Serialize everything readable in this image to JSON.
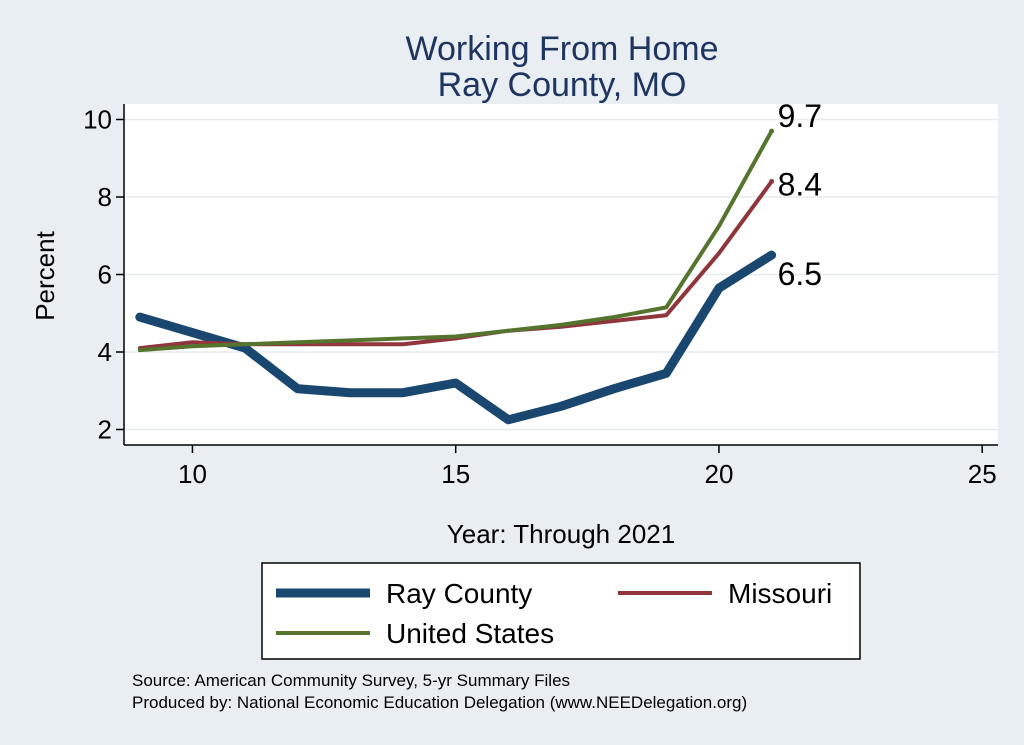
{
  "chart_data": {
    "type": "line",
    "title": [
      "Working From Home",
      "Ray County, MO"
    ],
    "xlabel": "Year: Through 2021",
    "ylabel": "Percent",
    "xlim": [
      8.7,
      25.3
    ],
    "ylim": [
      1.6,
      10.4
    ],
    "xticks": [
      10,
      15,
      20,
      25
    ],
    "yticks": [
      2,
      4,
      6,
      8,
      10
    ],
    "grid": true,
    "series": [
      {
        "name": "Ray County",
        "color": "#1a476f",
        "x": [
          9,
          10,
          11,
          12,
          13,
          14,
          15,
          16,
          17,
          18,
          19,
          20,
          21
        ],
        "y": [
          4.9,
          4.5,
          4.1,
          3.05,
          2.95,
          2.95,
          3.2,
          2.25,
          2.6,
          3.05,
          3.45,
          5.65,
          6.5
        ],
        "end_label": "6.5"
      },
      {
        "name": "Missouri",
        "color": "#90353b",
        "x": [
          9,
          10,
          11,
          12,
          13,
          14,
          15,
          16,
          17,
          18,
          19,
          20,
          21
        ],
        "y": [
          4.1,
          4.25,
          4.2,
          4.2,
          4.2,
          4.2,
          4.35,
          4.55,
          4.65,
          4.8,
          4.95,
          6.55,
          8.4
        ],
        "end_label": "8.4"
      },
      {
        "name": "United States",
        "color": "#55752f",
        "x": [
          9,
          10,
          11,
          12,
          13,
          14,
          15,
          16,
          17,
          18,
          19,
          20,
          21
        ],
        "y": [
          4.05,
          4.15,
          4.2,
          4.25,
          4.3,
          4.35,
          4.4,
          4.55,
          4.7,
          4.9,
          5.15,
          7.25,
          9.7
        ],
        "end_label": "9.7"
      }
    ],
    "legend": {
      "position": "bottom",
      "columns": 2
    },
    "notes": [
      "Source: American Community Survey, 5-yr Summary Files",
      "Produced by: National Economic Education Delegation (www.NEEDelegation.org)"
    ]
  }
}
